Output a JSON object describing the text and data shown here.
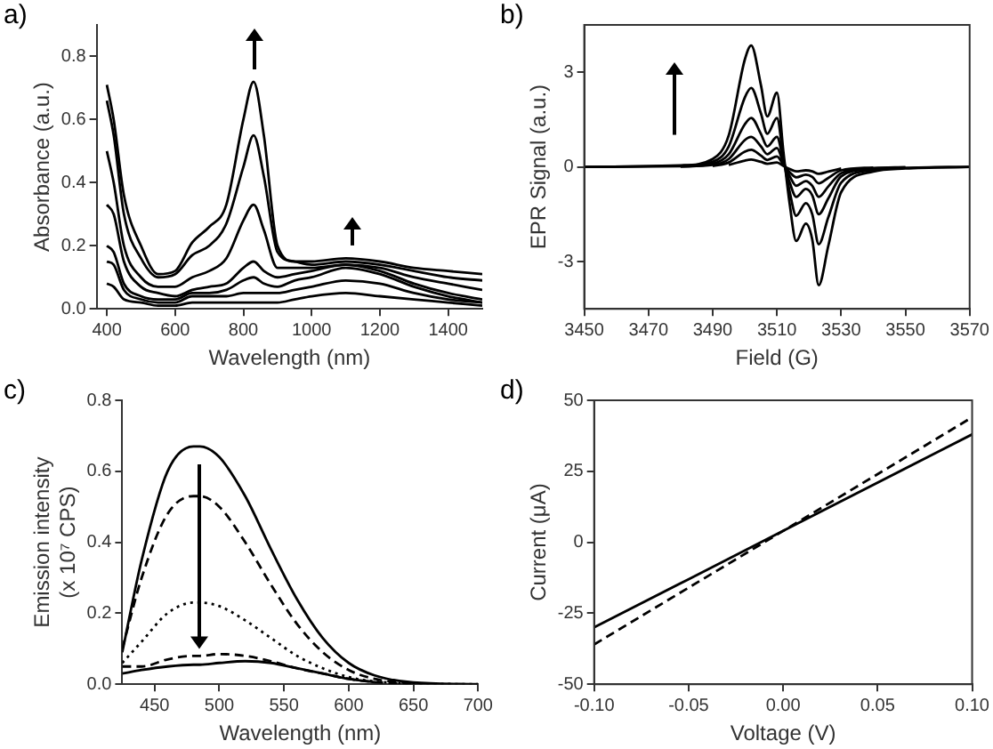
{
  "chart_data": [
    {
      "type": "line",
      "title": "a)",
      "xlabel": "Wavelength (nm)",
      "ylabel": "Absorbance (a.u.)",
      "xlim": [
        370,
        1500
      ],
      "xticks": [
        400,
        600,
        800,
        1000,
        1200,
        1400
      ],
      "ylim": [
        0,
        0.9
      ],
      "yticks": [
        {
          "value": 0,
          "label": "0.0"
        },
        0.2,
        0.4,
        0.6,
        0.8
      ],
      "grid": false,
      "legend": false,
      "marker": "none",
      "x": [
        400,
        420,
        450,
        500,
        550,
        600,
        650,
        700,
        750,
        800,
        830,
        860,
        900,
        950,
        1000,
        1100,
        1200,
        1300,
        1400,
        1500
      ],
      "series": [
        {
          "color": "#000000",
          "values": [
            0.71,
            0.6,
            0.36,
            0.2,
            0.11,
            0.12,
            0.21,
            0.26,
            0.33,
            0.6,
            0.72,
            0.55,
            0.2,
            0.15,
            0.15,
            0.16,
            0.15,
            0.13,
            0.12,
            0.11
          ]
        },
        {
          "color": "#000000",
          "values": [
            0.66,
            0.55,
            0.3,
            0.16,
            0.1,
            0.11,
            0.17,
            0.2,
            0.27,
            0.45,
            0.55,
            0.42,
            0.18,
            0.15,
            0.14,
            0.15,
            0.14,
            0.12,
            0.1,
            0.09
          ]
        },
        {
          "color": "#000000",
          "values": [
            0.5,
            0.4,
            0.2,
            0.1,
            0.07,
            0.07,
            0.1,
            0.12,
            0.16,
            0.28,
            0.33,
            0.25,
            0.13,
            0.13,
            0.13,
            0.14,
            0.13,
            0.1,
            0.08,
            0.06
          ]
        },
        {
          "color": "#000000",
          "values": [
            0.33,
            0.3,
            0.15,
            0.07,
            0.05,
            0.04,
            0.06,
            0.07,
            0.08,
            0.13,
            0.15,
            0.12,
            0.1,
            0.11,
            0.12,
            0.14,
            0.12,
            0.08,
            0.05,
            0.03
          ]
        },
        {
          "color": "#000000",
          "values": [
            0.2,
            0.18,
            0.08,
            0.04,
            0.03,
            0.03,
            0.05,
            0.05,
            0.06,
            0.09,
            0.1,
            0.08,
            0.07,
            0.09,
            0.1,
            0.13,
            0.11,
            0.07,
            0.04,
            0.02
          ]
        },
        {
          "color": "#000000",
          "values": [
            0.15,
            0.14,
            0.06,
            0.03,
            0.02,
            0.02,
            0.04,
            0.04,
            0.04,
            0.05,
            0.05,
            0.05,
            0.05,
            0.06,
            0.07,
            0.09,
            0.08,
            0.05,
            0.03,
            0.02
          ]
        },
        {
          "color": "#000000",
          "values": [
            0.08,
            0.07,
            0.03,
            0.02,
            0.01,
            0.01,
            0.02,
            0.02,
            0.02,
            0.02,
            0.02,
            0.02,
            0.02,
            0.03,
            0.04,
            0.05,
            0.04,
            0.03,
            0.02,
            0.01
          ]
        }
      ]
    },
    {
      "type": "line",
      "title": "b)",
      "xlabel": "Field (G)",
      "ylabel": "EPR Signal (a.u.)",
      "xlim": [
        3450,
        3570
      ],
      "xticks": [
        3450,
        3470,
        3490,
        3510,
        3530,
        3550,
        3570
      ],
      "ylim": [
        -4.5,
        4.5
      ],
      "yticks": [
        -3,
        0,
        3
      ],
      "grid": false,
      "legend": false,
      "marker": "none",
      "x": [
        3450,
        3480,
        3490,
        3495,
        3500,
        3502,
        3505,
        3507,
        3510,
        3512,
        3514,
        3516,
        3519,
        3521,
        3523,
        3526,
        3530,
        3540,
        3550,
        3570
      ],
      "series": [
        {
          "color": "#000000",
          "values": [
            0,
            0.05,
            0.25,
            1.0,
            3.4,
            3.85,
            2.6,
            1.6,
            2.35,
            0.5,
            -1.2,
            -2.35,
            -1.8,
            -2.3,
            -3.75,
            -2.5,
            -0.8,
            -0.15,
            -0.05,
            0
          ]
        },
        {
          "color": "#000000",
          "x": [
            3480,
            3490,
            3495,
            3500,
            3502,
            3505,
            3507,
            3510,
            3512,
            3514,
            3516,
            3519,
            3521,
            3523,
            3526,
            3530,
            3540,
            3550,
            3570
          ],
          "values": [
            0.03,
            0.16,
            0.65,
            2.2,
            2.5,
            1.7,
            1.05,
            1.55,
            0.3,
            -0.8,
            -1.55,
            -1.15,
            -1.5,
            -2.45,
            -1.6,
            -0.5,
            -0.1,
            -0.03,
            0
          ]
        },
        {
          "color": "#000000",
          "x": [
            3450,
            3480,
            3490,
            3495,
            3500,
            3502,
            3505,
            3507,
            3510,
            3512,
            3514,
            3516,
            3519,
            3521,
            3523,
            3526,
            3530,
            3540,
            3550
          ],
          "values": [
            0,
            0.02,
            0.1,
            0.4,
            1.35,
            1.55,
            1.05,
            0.65,
            0.95,
            0.2,
            -0.5,
            -0.95,
            -0.7,
            -0.9,
            -1.5,
            -1.0,
            -0.3,
            -0.06,
            -0.02
          ]
        },
        {
          "color": "#000000",
          "x": [
            3480,
            3490,
            3495,
            3500,
            3502,
            3505,
            3507,
            3510,
            3512,
            3514,
            3516,
            3519,
            3521,
            3523,
            3526,
            3530,
            3540,
            3550
          ],
          "values": [
            0.01,
            0.06,
            0.25,
            0.85,
            0.95,
            0.65,
            0.4,
            0.6,
            0.12,
            -0.3,
            -0.6,
            -0.45,
            -0.6,
            -0.95,
            -0.62,
            -0.2,
            -0.04,
            -0.01
          ]
        },
        {
          "color": "#000000",
          "x": [
            3490,
            3495,
            3500,
            3502,
            3505,
            3507,
            3510,
            3512,
            3514,
            3516,
            3519,
            3521,
            3523,
            3526,
            3530,
            3540
          ],
          "values": [
            0.03,
            0.14,
            0.48,
            0.54,
            0.36,
            0.22,
            0.33,
            0.07,
            -0.17,
            -0.33,
            -0.25,
            -0.32,
            -0.52,
            -0.35,
            -0.11,
            -0.02
          ]
        },
        {
          "color": "#000000",
          "x": [
            3495,
            3500,
            3502,
            3505,
            3507,
            3510,
            3512,
            3514,
            3516,
            3519,
            3521,
            3523,
            3526,
            3530
          ],
          "values": [
            0.06,
            0.2,
            0.23,
            0.16,
            0.1,
            0.14,
            0.03,
            -0.07,
            -0.14,
            -0.11,
            -0.14,
            -0.22,
            -0.15,
            -0.05
          ]
        }
      ]
    },
    {
      "type": "line",
      "title": "c)",
      "xlabel": "Wavelength (nm)",
      "ylabel": "Emission intensity\n(x 10⁷ CPS)",
      "xlim": [
        425,
        700
      ],
      "xticks": [
        450,
        500,
        550,
        600,
        650,
        700
      ],
      "ylim": [
        0,
        0.8
      ],
      "yticks": [
        {
          "value": 0,
          "label": "0.0"
        },
        0.2,
        0.4,
        0.6,
        0.8
      ],
      "grid": false,
      "legend": false,
      "marker": "none",
      "x": [
        425,
        440,
        460,
        480,
        485,
        500,
        520,
        540,
        560,
        580,
        600,
        620,
        650,
        700
      ],
      "series": [
        {
          "color": "#000000",
          "line_style": "solid",
          "values": [
            0.09,
            0.35,
            0.6,
            0.67,
            0.67,
            0.64,
            0.53,
            0.38,
            0.24,
            0.13,
            0.06,
            0.025,
            0.005,
            0
          ]
        },
        {
          "color": "#000000",
          "line_style": "dashed",
          "x": [
            425,
            440,
            460,
            480,
            485,
            500,
            520,
            540,
            560,
            580,
            600,
            620,
            650
          ],
          "values": [
            0.1,
            0.3,
            0.48,
            0.53,
            0.53,
            0.5,
            0.4,
            0.28,
            0.17,
            0.09,
            0.04,
            0.015,
            0.003
          ]
        },
        {
          "color": "#000000",
          "line_style": "dotted",
          "values": [
            0.06,
            0.12,
            0.2,
            0.23,
            0.23,
            0.22,
            0.18,
            0.13,
            0.08,
            0.045,
            0.02,
            0.008,
            0.002,
            0
          ]
        },
        {
          "color": "#000000",
          "line_style": "dashed",
          "x": [
            425,
            440,
            460,
            480,
            485,
            500,
            520,
            540,
            560,
            580,
            600,
            620,
            650
          ],
          "values": [
            0.05,
            0.05,
            0.07,
            0.08,
            0.08,
            0.085,
            0.08,
            0.065,
            0.045,
            0.03,
            0.015,
            0.006,
            0.001
          ]
        },
        {
          "color": "#000000",
          "line_style": "solid",
          "x": [
            425,
            440,
            460,
            480,
            485,
            500,
            520,
            540,
            560,
            580,
            600,
            620
          ],
          "values": [
            0.03,
            0.04,
            0.05,
            0.055,
            0.055,
            0.06,
            0.065,
            0.06,
            0.045,
            0.03,
            0.015,
            0.006
          ]
        }
      ]
    },
    {
      "type": "line",
      "title": "d)",
      "xlabel": "Voltage (V)",
      "ylabel": "Current (μA)",
      "xlim": [
        -0.1,
        0.1
      ],
      "xticks": [
        {
          "value": -0.1,
          "label": "-0.10"
        },
        {
          "value": -0.05,
          "label": "-0.05"
        },
        {
          "value": 0,
          "label": "0.00"
        },
        {
          "value": 0.05,
          "label": "0.05"
        },
        {
          "value": 0.1,
          "label": "0.10"
        }
      ],
      "ylim": [
        -50,
        50
      ],
      "yticks": [
        -50,
        -25,
        0,
        25,
        50
      ],
      "grid": false,
      "legend": false,
      "marker": "none",
      "x": [
        -0.1,
        0,
        0.1
      ],
      "series": [
        {
          "color": "#000000",
          "line_style": "solid",
          "values": [
            -30,
            4,
            38
          ]
        },
        {
          "color": "#000000",
          "line_style": "dashed",
          "values": [
            -36,
            4,
            44
          ]
        }
      ]
    }
  ]
}
